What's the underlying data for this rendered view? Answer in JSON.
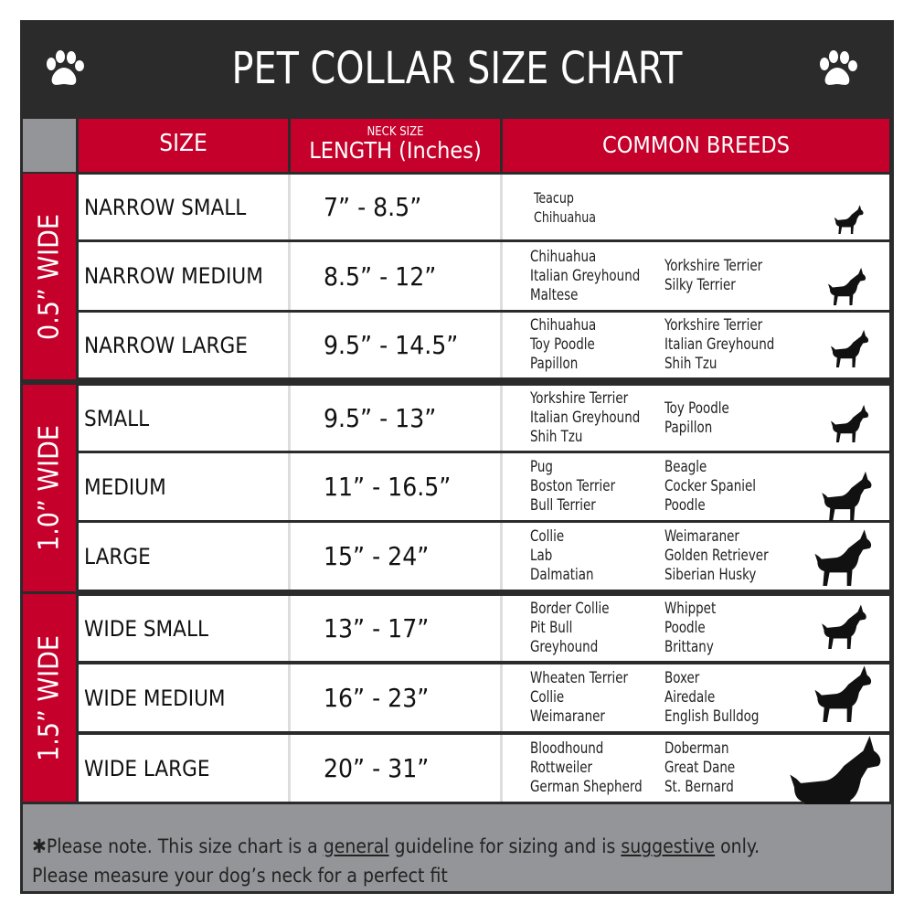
{
  "title": "PET COLLAR SIZE CHART",
  "colors": {
    "red": "#c4002b",
    "dark": "#2b2b2b",
    "gray": "#939598"
  },
  "icons": {
    "header": "paw-print-icon",
    "rows": "dog-silhouette-icon"
  },
  "headers": {
    "size": "SIZE",
    "length_small": "NECK SIZE",
    "length": "LENGTH (Inches)",
    "breeds": "COMMON BREEDS"
  },
  "groups": [
    {
      "label": "0.5” WIDE"
    },
    {
      "label": "1.0” WIDE"
    },
    {
      "label": "1.5” WIDE"
    }
  ],
  "rows": [
    {
      "size": "NARROW SMALL",
      "length": "7” - 8.5”",
      "breeds_a": "Teacup\nChihuahua",
      "breeds_b": ""
    },
    {
      "size": "NARROW MEDIUM",
      "length": "8.5” - 12”",
      "breeds_a": "Chihuahua\nItalian Greyhound\nMaltese",
      "breeds_b": "Yorkshire Terrier\nSilky Terrier"
    },
    {
      "size": "NARROW LARGE",
      "length": "9.5” - 14.5”",
      "breeds_a": "Chihuahua\nToy Poodle\nPapillon",
      "breeds_b": "Yorkshire Terrier\nItalian Greyhound\nShih Tzu"
    },
    {
      "size": "SMALL",
      "length": "9.5” - 13”",
      "breeds_a": "Yorkshire Terrier\nItalian Greyhound\nShih Tzu",
      "breeds_b": "Toy Poodle\nPapillon"
    },
    {
      "size": "MEDIUM",
      "length": "11” - 16.5”",
      "breeds_a": "Pug\nBoston Terrier\nBull Terrier",
      "breeds_b": "Beagle\nCocker Spaniel\nPoodle"
    },
    {
      "size": "LARGE",
      "length": "15” - 24”",
      "breeds_a": "Collie\nLab\nDalmatian",
      "breeds_b": "Weimaraner\nGolden Retriever\nSiberian Husky"
    },
    {
      "size": "WIDE SMALL",
      "length": "13” - 17”",
      "breeds_a": "Border Collie\nPit Bull\nGreyhound",
      "breeds_b": "Whippet\nPoodle\nBrittany"
    },
    {
      "size": "WIDE MEDIUM",
      "length": "16” - 23”",
      "breeds_a": "Wheaten Terrier\nCollie\nWeimaraner",
      "breeds_b": "Boxer\nAiredale\nEnglish Bulldog"
    },
    {
      "size": "WIDE LARGE",
      "length": "20” - 31”",
      "breeds_a": "Bloodhound\nRottweiler\nGerman Shepherd",
      "breeds_b": "Doberman\nGreat Dane\nSt. Bernard"
    }
  ],
  "footer": {
    "t1": "✱Please note. This size chart is a ",
    "u1": "general",
    "t2": " guideline for sizing and is ",
    "u2": "suggestive",
    "t3": " only.",
    "line2": "Please measure your dog’s neck for a perfect fit"
  }
}
